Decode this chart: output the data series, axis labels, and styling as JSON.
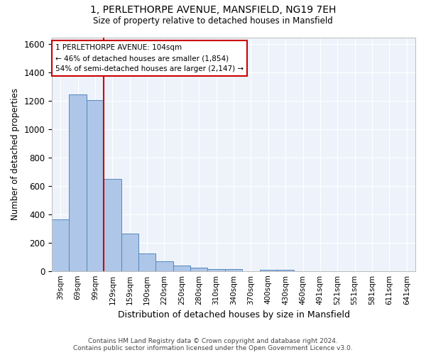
{
  "title": "1, PERLETHORPE AVENUE, MANSFIELD, NG19 7EH",
  "subtitle": "Size of property relative to detached houses in Mansfield",
  "xlabel": "Distribution of detached houses by size in Mansfield",
  "ylabel": "Number of detached properties",
  "footer_line1": "Contains HM Land Registry data © Crown copyright and database right 2024.",
  "footer_line2": "Contains public sector information licensed under the Open Government Licence v3.0.",
  "bin_labels": [
    "39sqm",
    "69sqm",
    "99sqm",
    "129sqm",
    "159sqm",
    "190sqm",
    "220sqm",
    "250sqm",
    "280sqm",
    "310sqm",
    "340sqm",
    "370sqm",
    "400sqm",
    "430sqm",
    "460sqm",
    "491sqm",
    "521sqm",
    "551sqm",
    "581sqm",
    "611sqm",
    "641sqm"
  ],
  "bar_values": [
    365,
    1245,
    1205,
    650,
    262,
    122,
    70,
    38,
    25,
    15,
    12,
    0,
    10,
    8,
    0,
    0,
    0,
    0,
    0,
    0,
    0
  ],
  "bar_color": "#aec6e8",
  "bar_edge_color": "#5588bb",
  "background_color": "#eef3fb",
  "grid_color": "#ffffff",
  "property_label": "1 PERLETHORPE AVENUE: 104sqm",
  "pct_smaller": 46,
  "n_smaller": 1854,
  "pct_larger_semi": 54,
  "n_larger_semi": 2147,
  "vline_color": "#cc0000",
  "annotation_box_color": "#cc0000",
  "ylim": [
    0,
    1650
  ],
  "yticks": [
    0,
    200,
    400,
    600,
    800,
    1000,
    1200,
    1400,
    1600
  ],
  "vline_x": 2.5,
  "figsize": [
    6.0,
    5.0
  ],
  "dpi": 100
}
